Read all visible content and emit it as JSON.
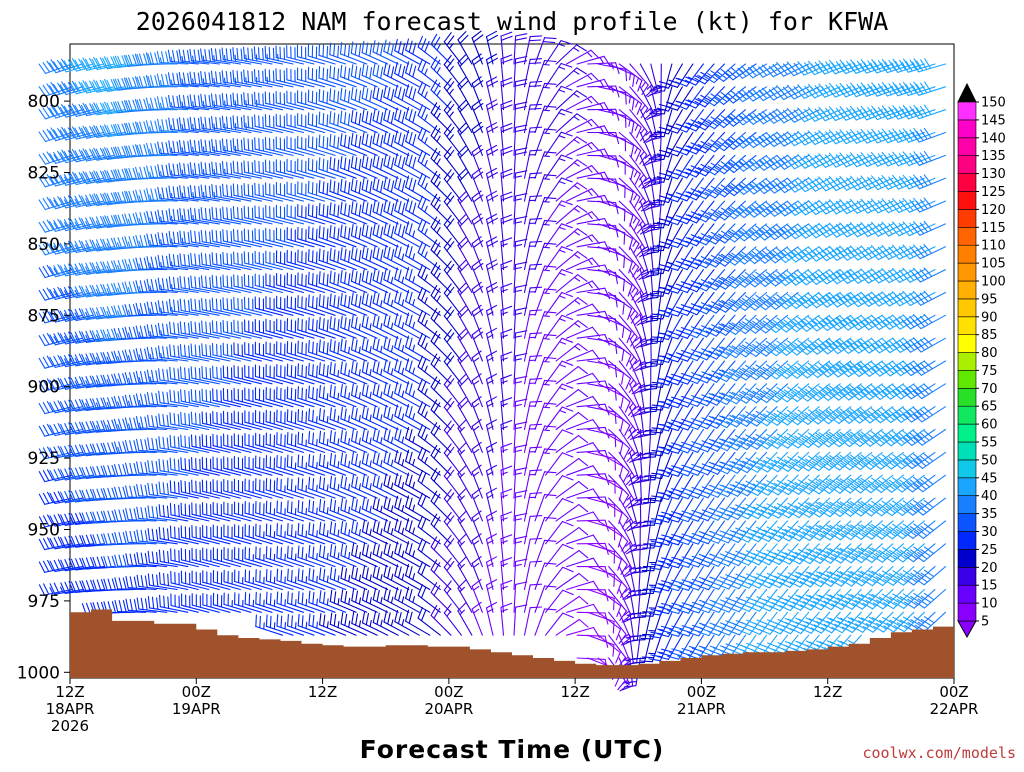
{
  "chart_data": {
    "type": "wind-barb-time-height",
    "title": "2026041812 NAM forecast wind profile (kt) for KFWA",
    "xlabel": "Forecast Time (UTC)",
    "ylabel": "",
    "credit": "coolwx.com/models",
    "y_axis": {
      "scale": "linear-pressure",
      "inverted": true,
      "ylim": [
        1002,
        780
      ],
      "ticks": [
        800,
        825,
        850,
        875,
        900,
        925,
        950,
        975,
        1000
      ],
      "tick_labels": [
        "800",
        "825",
        "850",
        "875",
        "900",
        "925",
        "950",
        "975",
        "1000"
      ]
    },
    "x_axis": {
      "xlim_hours": [
        0,
        84
      ],
      "ticks": [
        {
          "hour": 0,
          "line1": "12Z",
          "line2": "18APR",
          "line3": "2026"
        },
        {
          "hour": 12,
          "line1": "00Z",
          "line2": "19APR",
          "line3": ""
        },
        {
          "hour": 24,
          "line1": "12Z",
          "line2": "",
          "line3": ""
        },
        {
          "hour": 36,
          "line1": "00Z",
          "line2": "20APR",
          "line3": ""
        },
        {
          "hour": 48,
          "line1": "12Z",
          "line2": "",
          "line3": ""
        },
        {
          "hour": 60,
          "line1": "00Z",
          "line2": "21APR",
          "line3": ""
        },
        {
          "hour": 72,
          "line1": "12Z",
          "line2": "",
          "line3": ""
        },
        {
          "hour": 84,
          "line1": "00Z",
          "line2": "22APR",
          "line3": ""
        }
      ]
    },
    "colorbar": {
      "levels": [
        5,
        10,
        15,
        20,
        25,
        30,
        35,
        40,
        45,
        50,
        55,
        60,
        65,
        70,
        75,
        80,
        85,
        90,
        95,
        100,
        105,
        110,
        115,
        120,
        125,
        130,
        135,
        140,
        145,
        150
      ],
      "colors": [
        "#8a00ff",
        "#6a00ff",
        "#3a00e8",
        "#0000cc",
        "#0028ff",
        "#0a55ff",
        "#1a7fff",
        "#1aa6ff",
        "#10c8e8",
        "#00e0b8",
        "#00f08a",
        "#10e860",
        "#28e028",
        "#60e800",
        "#a8f000",
        "#ffff00",
        "#ffe000",
        "#ffc800",
        "#ffb000",
        "#ff9800",
        "#ff8000",
        "#ff6400",
        "#ff3c00",
        "#ff1010",
        "#ff0040",
        "#ff0080",
        "#ff00a8",
        "#ff00c8",
        "#ff30ff"
      ],
      "under_color": "#8a00ff",
      "over_color": "#000000"
    },
    "terrain_color": "#a0522d",
    "surface_pressure": {
      "hours": [
        0,
        2,
        4,
        6,
        8,
        10,
        12,
        14,
        16,
        18,
        20,
        22,
        24,
        26,
        28,
        30,
        32,
        34,
        36,
        38,
        40,
        42,
        44,
        46,
        48,
        50,
        52,
        54,
        56,
        58,
        60,
        62,
        64,
        66,
        68,
        70,
        72,
        74,
        76,
        78,
        80,
        82,
        84
      ],
      "pressure": [
        979,
        978,
        982,
        982,
        983,
        983,
        985,
        987,
        988,
        988.5,
        989,
        990,
        990.5,
        991,
        991,
        990.5,
        990.5,
        991,
        991,
        992,
        993,
        994,
        995,
        996,
        997,
        997.5,
        997.5,
        997,
        996,
        995,
        994,
        993.5,
        993,
        993,
        992.5,
        992,
        991,
        990,
        988,
        986,
        985,
        984,
        983
      ]
    },
    "levels_hpa": [
      780,
      787,
      795,
      803,
      811,
      819,
      827,
      835,
      843,
      851,
      859,
      867,
      875,
      883,
      891,
      899,
      907,
      915,
      923,
      931,
      939,
      947,
      955,
      963,
      971,
      979,
      987,
      995
    ],
    "time_step_hours": 1,
    "wind_anchors": [
      {
        "hour": 0,
        "dir_upper": 250,
        "spd_upper": 40,
        "dir_lower": 260,
        "spd_lower": 25
      },
      {
        "hour": 6,
        "dir_upper": 260,
        "spd_upper": 42,
        "dir_lower": 270,
        "spd_lower": 28
      },
      {
        "hour": 12,
        "dir_upper": 275,
        "spd_upper": 35,
        "dir_lower": 285,
        "spd_lower": 28
      },
      {
        "hour": 24,
        "dir_upper": 285,
        "spd_upper": 32,
        "dir_lower": 290,
        "spd_lower": 25
      },
      {
        "hour": 34,
        "dir_upper": 300,
        "spd_upper": 30,
        "dir_lower": 300,
        "spd_lower": 22
      },
      {
        "hour": 38,
        "dir_upper": 330,
        "spd_upper": 22,
        "dir_lower": 330,
        "spd_lower": 15
      },
      {
        "hour": 44,
        "dir_upper": 20,
        "spd_upper": 18,
        "dir_lower": 20,
        "spd_lower": 10
      },
      {
        "hour": 50,
        "dir_upper": 100,
        "spd_upper": 12,
        "dir_lower": 130,
        "spd_lower": 8
      },
      {
        "hour": 54,
        "dir_upper": 150,
        "spd_upper": 15,
        "dir_lower": 190,
        "spd_lower": 18
      },
      {
        "hour": 58,
        "dir_upper": 210,
        "spd_upper": 22,
        "dir_lower": 210,
        "spd_lower": 30
      },
      {
        "hour": 66,
        "dir_upper": 240,
        "spd_upper": 35,
        "dir_lower": 215,
        "spd_lower": 42
      },
      {
        "hour": 74,
        "dir_upper": 250,
        "spd_upper": 42,
        "dir_lower": 220,
        "spd_lower": 45
      },
      {
        "hour": 84,
        "dir_upper": 255,
        "spd_upper": 40,
        "dir_lower": 225,
        "spd_lower": 38
      }
    ]
  }
}
